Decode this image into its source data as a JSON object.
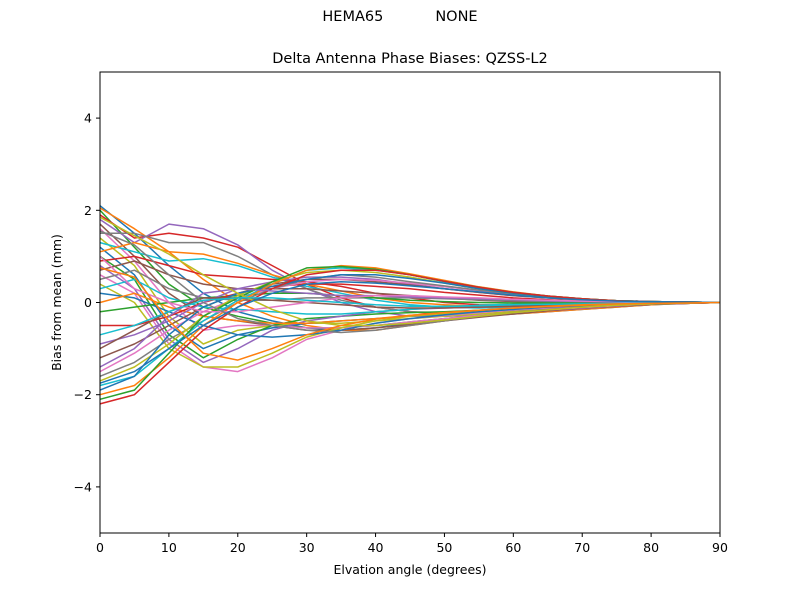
{
  "suptitle": {
    "left": "HEMA65",
    "right": "NONE"
  },
  "chart_data": {
    "type": "line",
    "title": "Delta Antenna Phase Biases: QZSS-L2",
    "xlabel": "Elvation angle (degrees)",
    "ylabel": "Bias from mean (mm)",
    "xlim": [
      0,
      90
    ],
    "ylim": [
      -5,
      5
    ],
    "xticks": [
      0,
      10,
      20,
      30,
      40,
      50,
      60,
      70,
      80,
      90
    ],
    "yticks": [
      -4,
      -2,
      0,
      2,
      4
    ],
    "ytick_labels": [
      "−4",
      "−2",
      "0",
      "2",
      "4"
    ],
    "grid": false,
    "legend": "none",
    "palette": [
      "#1f77b4",
      "#ff7f0e",
      "#2ca02c",
      "#d62728",
      "#9467bd",
      "#8c564b",
      "#e377c2",
      "#7f7f7f",
      "#bcbd22",
      "#17becf"
    ],
    "x": [
      0,
      5,
      10,
      15,
      20,
      25,
      30,
      35,
      40,
      45,
      50,
      55,
      60,
      65,
      70,
      75,
      80,
      85,
      90
    ],
    "series": [
      {
        "values": [
          2.1,
          1.5,
          0.8,
          0.2,
          -0.2,
          -0.4,
          -0.55,
          -0.6,
          -0.55,
          -0.45,
          -0.35,
          -0.3,
          -0.25,
          -0.2,
          -0.15,
          -0.1,
          -0.05,
          -0.02,
          0
        ]
      },
      {
        "values": [
          2.05,
          1.6,
          1.1,
          0.5,
          0.0,
          -0.3,
          -0.5,
          -0.6,
          -0.6,
          -0.5,
          -0.4,
          -0.3,
          -0.25,
          -0.2,
          -0.15,
          -0.1,
          -0.05,
          -0.02,
          0
        ]
      },
      {
        "values": [
          2.0,
          1.2,
          0.4,
          -0.1,
          -0.3,
          -0.45,
          -0.55,
          -0.55,
          -0.5,
          -0.42,
          -0.35,
          -0.28,
          -0.22,
          -0.17,
          -0.12,
          -0.08,
          -0.04,
          -0.02,
          0
        ]
      },
      {
        "values": [
          1.9,
          1.4,
          1.5,
          1.4,
          1.2,
          0.8,
          0.4,
          0.1,
          -0.1,
          -0.2,
          -0.25,
          -0.25,
          -0.2,
          -0.16,
          -0.12,
          -0.08,
          -0.04,
          -0.02,
          0
        ]
      },
      {
        "values": [
          1.8,
          1.3,
          1.7,
          1.6,
          1.25,
          0.7,
          0.3,
          0.0,
          -0.2,
          -0.3,
          -0.3,
          -0.28,
          -0.22,
          -0.18,
          -0.13,
          -0.08,
          -0.04,
          -0.02,
          0
        ]
      },
      {
        "values": [
          1.7,
          1.0,
          0.2,
          -0.3,
          -0.4,
          -0.5,
          -0.6,
          -0.6,
          -0.55,
          -0.48,
          -0.4,
          -0.32,
          -0.25,
          -0.18,
          -0.12,
          -0.08,
          -0.04,
          -0.02,
          0
        ]
      },
      {
        "values": [
          1.6,
          0.9,
          0.0,
          -0.6,
          -0.5,
          -0.5,
          -0.55,
          -0.55,
          -0.5,
          -0.42,
          -0.35,
          -0.28,
          -0.22,
          -0.16,
          -0.11,
          -0.07,
          -0.03,
          -0.01,
          0
        ]
      },
      {
        "values": [
          1.5,
          1.5,
          1.3,
          1.3,
          1.0,
          0.6,
          0.3,
          0.05,
          -0.1,
          -0.2,
          -0.22,
          -0.2,
          -0.17,
          -0.13,
          -0.1,
          -0.06,
          -0.03,
          -0.01,
          0
        ]
      },
      {
        "values": [
          1.4,
          0.8,
          -0.3,
          -0.9,
          -0.6,
          -0.5,
          -0.45,
          -0.45,
          -0.4,
          -0.35,
          -0.3,
          -0.25,
          -0.2,
          -0.15,
          -0.1,
          -0.06,
          -0.03,
          -0.01,
          0
        ]
      },
      {
        "values": [
          1.3,
          1.1,
          0.9,
          0.95,
          0.8,
          0.55,
          0.35,
          0.2,
          0.05,
          -0.05,
          -0.1,
          -0.12,
          -0.1,
          -0.08,
          -0.06,
          -0.04,
          -0.02,
          -0.01,
          0
        ]
      },
      {
        "values": [
          1.2,
          0.6,
          -0.5,
          -1.0,
          -0.7,
          -0.55,
          -0.45,
          -0.4,
          -0.35,
          -0.3,
          -0.25,
          -0.2,
          -0.16,
          -0.12,
          -0.08,
          -0.05,
          -0.02,
          -0.01,
          0
        ]
      },
      {
        "values": [
          1.1,
          1.3,
          1.1,
          1.05,
          0.85,
          0.6,
          0.4,
          0.25,
          0.1,
          0.0,
          -0.05,
          -0.08,
          -0.08,
          -0.06,
          -0.05,
          -0.03,
          -0.02,
          -0.01,
          0
        ]
      },
      {
        "values": [
          1.0,
          0.5,
          -0.7,
          -1.2,
          -0.8,
          -0.5,
          -0.35,
          -0.3,
          -0.25,
          -0.22,
          -0.2,
          -0.17,
          -0.14,
          -0.1,
          -0.07,
          -0.04,
          -0.02,
          -0.01,
          0
        ]
      },
      {
        "values": [
          0.9,
          1.0,
          0.8,
          0.6,
          0.55,
          0.5,
          0.45,
          0.35,
          0.2,
          0.1,
          0.0,
          -0.05,
          -0.06,
          -0.05,
          -0.04,
          -0.03,
          -0.02,
          -0.01,
          0
        ]
      },
      {
        "values": [
          0.8,
          0.3,
          -0.8,
          -1.3,
          -1.0,
          -0.6,
          -0.4,
          -0.3,
          -0.2,
          -0.15,
          -0.12,
          -0.1,
          -0.08,
          -0.06,
          -0.04,
          -0.03,
          -0.02,
          -0.01,
          0
        ]
      },
      {
        "values": [
          0.7,
          0.9,
          0.6,
          0.4,
          0.3,
          0.3,
          0.3,
          0.25,
          0.2,
          0.15,
          0.1,
          0.05,
          0.02,
          0.0,
          -0.01,
          -0.01,
          -0.01,
          0.0,
          0
        ]
      },
      {
        "values": [
          0.6,
          0.2,
          -0.9,
          -1.4,
          -1.5,
          -1.2,
          -0.8,
          -0.6,
          -0.45,
          -0.35,
          -0.28,
          -0.22,
          -0.16,
          -0.12,
          -0.08,
          -0.05,
          -0.02,
          -0.01,
          0
        ]
      },
      {
        "values": [
          0.5,
          0.7,
          0.3,
          0.1,
          0.05,
          0.05,
          0.1,
          0.1,
          0.1,
          0.1,
          0.08,
          0.06,
          0.04,
          0.02,
          0.01,
          0.01,
          0.0,
          0.0,
          0
        ]
      },
      {
        "values": [
          0.4,
          0.0,
          -1.0,
          -1.4,
          -1.4,
          -1.1,
          -0.75,
          -0.55,
          -0.4,
          -0.3,
          -0.24,
          -0.18,
          -0.13,
          -0.09,
          -0.06,
          -0.04,
          -0.02,
          -0.01,
          0
        ]
      },
      {
        "values": [
          0.3,
          0.5,
          0.1,
          -0.1,
          -0.15,
          -0.2,
          -0.25,
          -0.25,
          -0.2,
          -0.15,
          -0.1,
          -0.06,
          -0.04,
          -0.02,
          -0.01,
          0.0,
          0.0,
          0.0,
          0
        ]
      },
      {
        "values": [
          0.2,
          0.1,
          -0.2,
          -0.5,
          -0.7,
          -0.75,
          -0.7,
          -0.6,
          -0.45,
          -0.35,
          -0.27,
          -0.2,
          -0.15,
          -0.1,
          -0.07,
          -0.04,
          -0.02,
          -0.01,
          0
        ]
      },
      {
        "values": [
          0.0,
          0.2,
          -0.1,
          -0.3,
          -0.4,
          -0.45,
          -0.45,
          -0.4,
          -0.35,
          -0.28,
          -0.22,
          -0.17,
          -0.12,
          -0.09,
          -0.06,
          -0.04,
          -0.02,
          -0.01,
          0
        ]
      },
      {
        "values": [
          -0.2,
          -0.1,
          0.0,
          0.1,
          0.15,
          0.2,
          0.2,
          0.15,
          0.1,
          0.05,
          0.02,
          0.0,
          -0.01,
          -0.01,
          -0.01,
          0.0,
          0.0,
          0.0,
          0
        ]
      },
      {
        "values": [
          -0.5,
          -0.5,
          -0.3,
          0.0,
          0.2,
          0.35,
          0.4,
          0.4,
          0.35,
          0.3,
          0.22,
          0.16,
          0.1,
          0.06,
          0.03,
          0.02,
          0.01,
          0.0,
          0
        ]
      },
      {
        "values": [
          -0.9,
          -0.7,
          -0.4,
          0.0,
          0.3,
          0.45,
          0.55,
          0.55,
          0.5,
          0.4,
          0.3,
          0.22,
          0.15,
          0.1,
          0.06,
          0.03,
          0.02,
          0.01,
          0
        ]
      },
      {
        "values": [
          -1.2,
          -0.9,
          -0.5,
          -0.1,
          0.2,
          0.4,
          0.5,
          0.5,
          0.45,
          0.38,
          0.3,
          0.22,
          0.15,
          0.1,
          0.06,
          0.03,
          0.02,
          0.01,
          0
        ]
      },
      {
        "values": [
          -1.5,
          -1.1,
          -0.6,
          -0.2,
          0.1,
          0.3,
          0.45,
          0.5,
          0.48,
          0.42,
          0.34,
          0.26,
          0.18,
          0.12,
          0.07,
          0.04,
          0.02,
          0.01,
          0
        ]
      },
      {
        "values": [
          -1.6,
          -1.3,
          -0.8,
          -0.4,
          0.0,
          0.3,
          0.5,
          0.6,
          0.55,
          0.45,
          0.36,
          0.27,
          0.19,
          0.12,
          0.07,
          0.04,
          0.02,
          0.01,
          0
        ]
      },
      {
        "values": [
          -1.7,
          -1.4,
          -0.9,
          -0.3,
          0.15,
          0.45,
          0.65,
          0.7,
          0.65,
          0.55,
          0.42,
          0.3,
          0.2,
          0.13,
          0.08,
          0.04,
          0.02,
          0.01,
          0
        ]
      },
      {
        "values": [
          -1.8,
          -1.6,
          -1.0,
          -0.4,
          0.05,
          0.4,
          0.7,
          0.75,
          0.7,
          0.6,
          0.45,
          0.32,
          0.22,
          0.14,
          0.08,
          0.04,
          0.02,
          0.01,
          0
        ]
      },
      {
        "values": [
          -1.9,
          -1.6,
          -0.7,
          -0.1,
          0.2,
          0.35,
          0.5,
          0.6,
          0.6,
          0.52,
          0.42,
          0.3,
          0.2,
          0.13,
          0.07,
          0.04,
          0.02,
          0.01,
          0
        ]
      },
      {
        "values": [
          -2.0,
          -1.8,
          -1.2,
          -0.5,
          0.0,
          0.4,
          0.7,
          0.8,
          0.75,
          0.62,
          0.48,
          0.34,
          0.23,
          0.14,
          0.08,
          0.04,
          0.02,
          0.01,
          0
        ]
      },
      {
        "values": [
          -2.1,
          -1.9,
          -1.1,
          -0.3,
          0.1,
          0.45,
          0.75,
          0.78,
          0.72,
          0.6,
          0.46,
          0.33,
          0.22,
          0.14,
          0.08,
          0.04,
          0.02,
          0.01,
          0
        ]
      },
      {
        "values": [
          -2.2,
          -2.0,
          -1.3,
          -0.6,
          -0.1,
          0.3,
          0.6,
          0.7,
          0.7,
          0.6,
          0.46,
          0.33,
          0.22,
          0.14,
          0.08,
          0.04,
          0.02,
          0.01,
          0
        ]
      },
      {
        "values": [
          -1.4,
          -1.0,
          -0.3,
          0.2,
          0.3,
          0.25,
          0.2,
          0.15,
          0.15,
          0.12,
          0.1,
          0.08,
          0.06,
          0.04,
          0.02,
          0.01,
          0.01,
          0.0,
          0
        ]
      },
      {
        "values": [
          -1.0,
          -0.6,
          -0.2,
          0.1,
          0.1,
          0.05,
          0.0,
          -0.05,
          -0.1,
          -0.12,
          -0.12,
          -0.1,
          -0.08,
          -0.06,
          -0.04,
          -0.02,
          -0.01,
          0.0,
          0
        ]
      },
      {
        "values": [
          1.0,
          0.3,
          0.0,
          -0.2,
          -0.2,
          -0.1,
          0.0,
          0.1,
          0.15,
          0.15,
          0.12,
          0.1,
          0.07,
          0.05,
          0.03,
          0.02,
          0.01,
          0.0,
          0
        ]
      },
      {
        "values": [
          1.55,
          1.25,
          0.6,
          0.0,
          -0.35,
          -0.5,
          -0.6,
          -0.65,
          -0.6,
          -0.5,
          -0.4,
          -0.3,
          -0.22,
          -0.15,
          -0.1,
          -0.06,
          -0.03,
          -0.01,
          0
        ]
      },
      {
        "values": [
          1.85,
          1.45,
          1.05,
          0.6,
          0.2,
          -0.15,
          -0.4,
          -0.5,
          -0.5,
          -0.45,
          -0.38,
          -0.3,
          -0.22,
          -0.16,
          -0.1,
          -0.06,
          -0.03,
          -0.01,
          0
        ]
      },
      {
        "values": [
          -0.7,
          -0.5,
          -0.2,
          0.05,
          0.1,
          0.1,
          0.05,
          0.0,
          -0.05,
          -0.08,
          -0.08,
          -0.07,
          -0.05,
          -0.04,
          -0.03,
          -0.02,
          -0.01,
          0.0,
          0
        ]
      },
      {
        "values": [
          -1.75,
          -1.5,
          -1.0,
          -0.5,
          -0.1,
          0.2,
          0.4,
          0.45,
          0.42,
          0.36,
          0.3,
          0.23,
          0.16,
          0.1,
          0.06,
          0.03,
          0.02,
          0.01,
          0
        ]
      },
      {
        "values": [
          0.75,
          0.55,
          -0.4,
          -1.1,
          -1.25,
          -1.0,
          -0.7,
          -0.5,
          -0.36,
          -0.28,
          -0.22,
          -0.17,
          -0.12,
          -0.08,
          -0.05,
          -0.03,
          -0.02,
          -0.01,
          0
        ]
      }
    ]
  }
}
